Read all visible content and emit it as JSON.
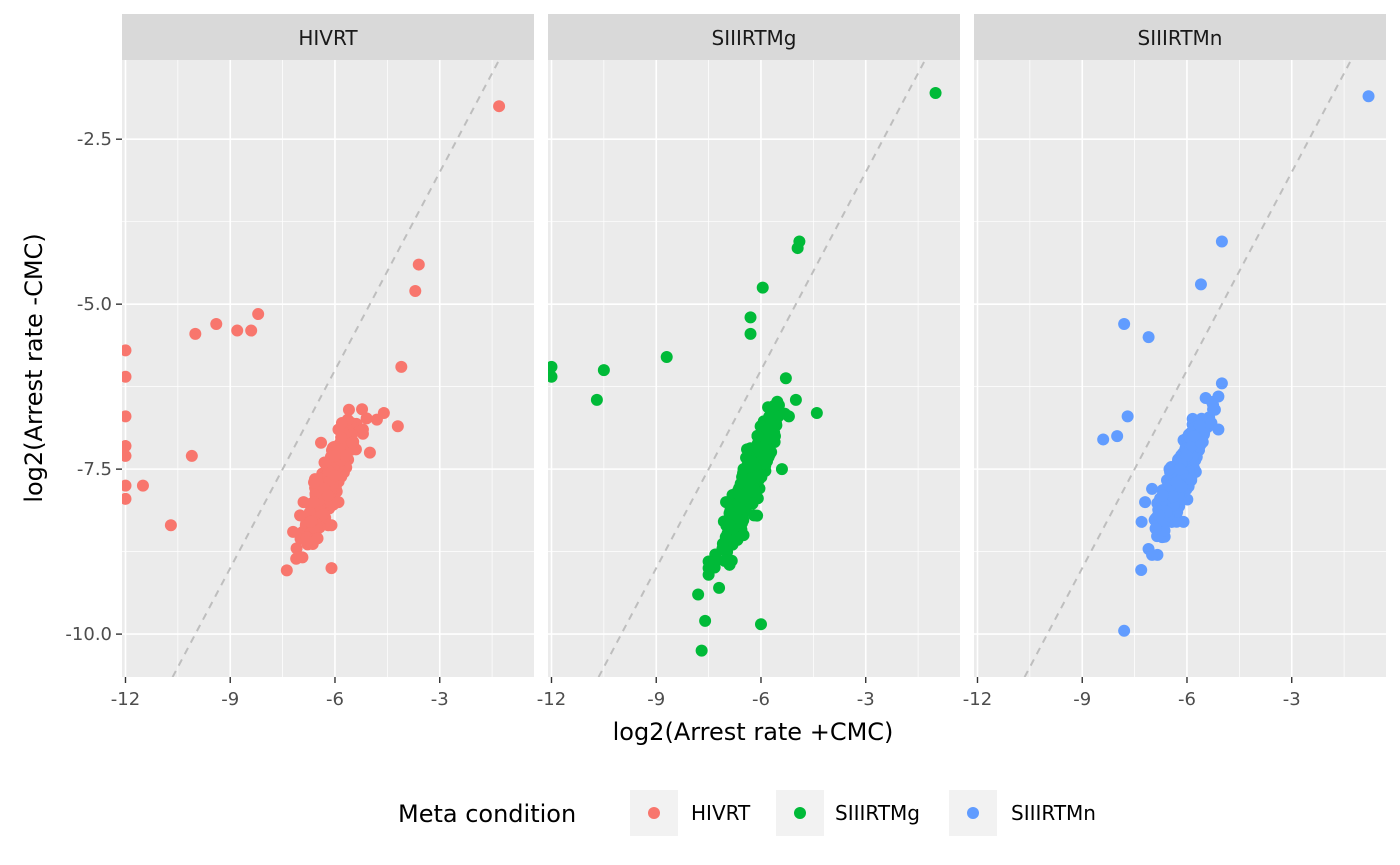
{
  "chart_data": {
    "type": "scatter",
    "xlabel": "log2(Arrest rate +CMC)",
    "ylabel": "log2(Arrest rate -CMC)",
    "xlim": [
      -12.1,
      -0.3
    ],
    "ylim": [
      -10.65,
      -1.3
    ],
    "x_ticks": [
      -12,
      -9,
      -6,
      -3
    ],
    "x_tick_labels": [
      "-12",
      "-9",
      "-6",
      "-3"
    ],
    "y_ticks": [
      -2.5,
      -5.0,
      -7.5,
      -10.0
    ],
    "y_tick_labels": [
      "-2.5",
      "-5.0",
      "-7.5",
      "-10.0"
    ],
    "grid": true,
    "reference_line": {
      "style": "dashed",
      "slope": 1,
      "intercept": 0,
      "color": "#bebebe"
    },
    "legend": {
      "title": "Meta condition",
      "position": "bottom",
      "entries": [
        "HIVRT",
        "SIIIRTMg",
        "SIIIRTMn"
      ]
    },
    "colors": {
      "HIVRT": "#F8766D",
      "SIIIRTMg": "#00BA38",
      "SIIIRTMn": "#619CFF"
    },
    "facets": [
      {
        "name": "HIVRT",
        "points": [
          [
            -1.3,
            -2.0
          ],
          [
            -3.6,
            -4.4
          ],
          [
            -3.7,
            -4.8
          ],
          [
            -4.1,
            -5.95
          ],
          [
            -8.2,
            -5.15
          ],
          [
            -8.4,
            -5.4
          ],
          [
            -8.8,
            -5.4
          ],
          [
            -9.4,
            -5.3
          ],
          [
            -10.0,
            -5.45
          ],
          [
            -12.0,
            -5.7
          ],
          [
            -12.0,
            -6.1
          ],
          [
            -12.0,
            -6.7
          ],
          [
            -12.0,
            -7.15
          ],
          [
            -12.0,
            -7.3
          ],
          [
            -12.0,
            -7.75
          ],
          [
            -12.0,
            -7.95
          ],
          [
            -11.5,
            -7.75
          ],
          [
            -10.1,
            -7.3
          ],
          [
            -10.7,
            -8.35
          ],
          [
            -6.1,
            -9.0
          ],
          [
            -5.6,
            -6.6
          ],
          [
            -4.6,
            -6.65
          ],
          [
            -4.2,
            -6.85
          ],
          [
            -5.0,
            -7.25
          ],
          [
            -5.4,
            -7.2
          ],
          [
            -5.9,
            -6.9
          ],
          [
            -6.3,
            -7.4
          ],
          [
            -6.6,
            -7.7
          ],
          [
            -6.9,
            -8.0
          ],
          [
            -7.2,
            -8.45
          ],
          [
            -7.1,
            -8.7
          ],
          [
            -6.7,
            -8.3
          ],
          [
            -6.3,
            -7.8
          ],
          [
            -5.7,
            -7.3
          ],
          [
            -5.2,
            -6.9
          ],
          [
            -4.8,
            -6.75
          ],
          [
            -5.9,
            -8.0
          ],
          [
            -6.1,
            -8.35
          ],
          [
            -6.5,
            -8.55
          ],
          [
            -6.8,
            -8.6
          ],
          [
            -7.0,
            -8.2
          ],
          [
            -6.4,
            -7.1
          ],
          [
            -5.8,
            -6.8
          ],
          [
            -6.0,
            -7.6
          ],
          [
            -6.2,
            -7.9
          ],
          [
            -5.5,
            -7.1
          ],
          [
            -6.6,
            -8.0
          ],
          [
            -6.0,
            -7.3
          ]
        ],
        "cluster": {
          "cx": -6.15,
          "cy": -7.7,
          "major_sd": 0.52,
          "minor_sd": 0.11,
          "slope": 1.25,
          "count": 420
        }
      },
      {
        "name": "SIIIRTMg",
        "points": [
          [
            -1.0,
            -1.8
          ],
          [
            -4.9,
            -4.05
          ],
          [
            -4.95,
            -4.15
          ],
          [
            -5.95,
            -4.75
          ],
          [
            -6.3,
            -5.2
          ],
          [
            -6.3,
            -5.45
          ],
          [
            -8.7,
            -5.8
          ],
          [
            -10.5,
            -6.0
          ],
          [
            -10.7,
            -6.45
          ],
          [
            -12.0,
            -5.95
          ],
          [
            -12.0,
            -6.1
          ],
          [
            -4.4,
            -6.65
          ],
          [
            -5.0,
            -6.45
          ],
          [
            -5.2,
            -6.7
          ],
          [
            -5.6,
            -7.0
          ],
          [
            -5.4,
            -7.5
          ],
          [
            -5.9,
            -7.3
          ],
          [
            -6.3,
            -7.8
          ],
          [
            -6.6,
            -8.1
          ],
          [
            -6.8,
            -8.4
          ],
          [
            -7.1,
            -8.7
          ],
          [
            -7.3,
            -8.9
          ],
          [
            -7.5,
            -8.9
          ],
          [
            -7.5,
            -9.0
          ],
          [
            -7.5,
            -9.1
          ],
          [
            -7.2,
            -9.3
          ],
          [
            -6.9,
            -8.95
          ],
          [
            -7.8,
            -9.4
          ],
          [
            -7.6,
            -9.8
          ],
          [
            -7.7,
            -10.25
          ],
          [
            -6.0,
            -9.85
          ],
          [
            -6.2,
            -8.2
          ],
          [
            -6.5,
            -8.5
          ],
          [
            -6.9,
            -8.35
          ],
          [
            -7.0,
            -8.0
          ],
          [
            -6.5,
            -7.5
          ],
          [
            -6.1,
            -7.0
          ],
          [
            -5.7,
            -6.8
          ],
          [
            -6.4,
            -7.2
          ],
          [
            -6.0,
            -7.6
          ],
          [
            -5.8,
            -6.9
          ],
          [
            -6.6,
            -7.9
          ]
        ],
        "cluster": {
          "cx": -6.3,
          "cy": -7.65,
          "major_sd": 0.58,
          "minor_sd": 0.12,
          "slope": 1.35,
          "count": 420
        }
      },
      {
        "name": "SIIIRTMn",
        "points": [
          [
            -0.8,
            -1.85
          ],
          [
            -5.0,
            -4.05
          ],
          [
            -5.6,
            -4.7
          ],
          [
            -7.8,
            -5.3
          ],
          [
            -7.1,
            -5.5
          ],
          [
            -7.7,
            -6.7
          ],
          [
            -8.4,
            -7.05
          ],
          [
            -8.0,
            -7.0
          ],
          [
            -5.0,
            -6.2
          ],
          [
            -5.1,
            -6.4
          ],
          [
            -5.2,
            -6.6
          ],
          [
            -5.3,
            -6.8
          ],
          [
            -5.1,
            -6.9
          ],
          [
            -7.0,
            -8.8
          ],
          [
            -7.8,
            -9.95
          ],
          [
            -6.1,
            -8.3
          ],
          [
            -6.8,
            -8.2
          ],
          [
            -7.2,
            -8.0
          ],
          [
            -7.3,
            -8.3
          ],
          [
            -7.0,
            -7.8
          ],
          [
            -6.5,
            -7.5
          ],
          [
            -6.0,
            -7.3
          ],
          [
            -5.6,
            -7.1
          ],
          [
            -6.3,
            -7.7
          ],
          [
            -6.7,
            -7.9
          ],
          [
            -5.8,
            -7.0
          ],
          [
            -6.9,
            -8.4
          ],
          [
            -6.2,
            -7.5
          ]
        ],
        "cluster": {
          "cx": -6.15,
          "cy": -7.55,
          "major_sd": 0.5,
          "minor_sd": 0.12,
          "slope": 1.3,
          "count": 380
        }
      }
    ]
  }
}
